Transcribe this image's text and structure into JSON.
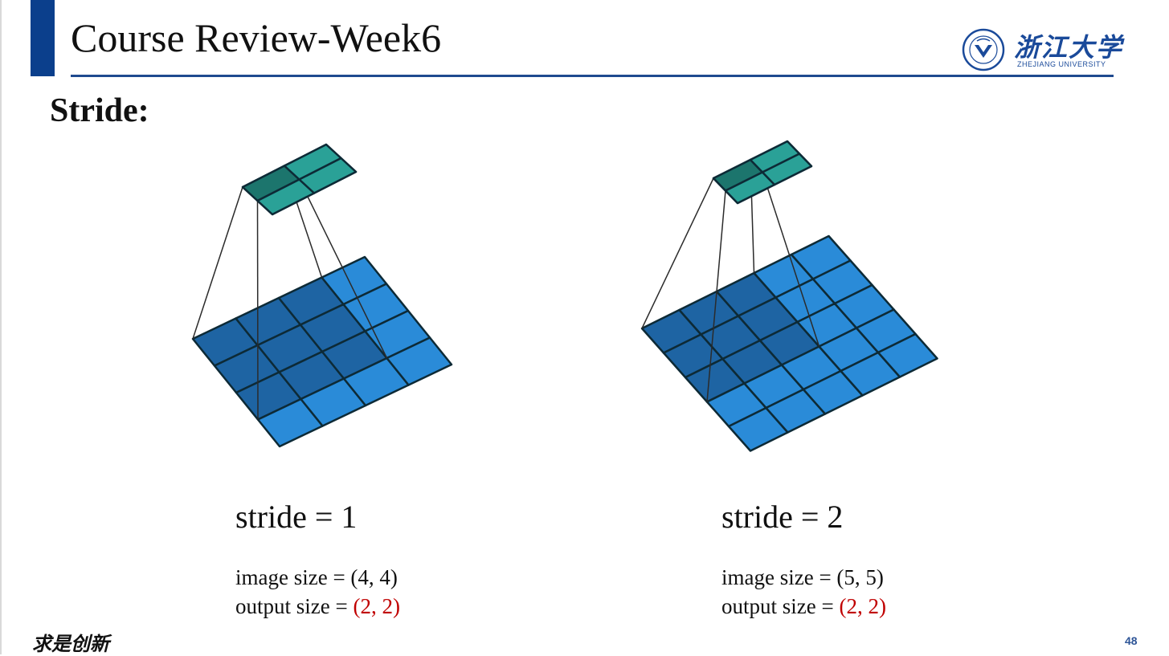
{
  "header": {
    "title": "Course Review-Week6",
    "logo_cn": "浙江大学",
    "logo_en": "ZHEJIANG UNIVERSITY"
  },
  "slide": {
    "subtitle": "Stride:",
    "left": {
      "stride_label": "stride = 1",
      "image_size_label": "image size = (4, 4)",
      "output_size_prefix": "output size = ",
      "output_size_value": "(2, 2)"
    },
    "right": {
      "stride_label": "stride = 2",
      "image_size_label": "image size = (5, 5)",
      "output_size_prefix": "output size = ",
      "output_size_value": "(2, 2)"
    }
  },
  "footer": {
    "motto": "求是创新",
    "page_number": "48"
  },
  "colors": {
    "accent": "#0b3f8c",
    "input_cell": "#2a8bd8",
    "input_highlight": "#1e64a3",
    "output_cell": "#2aa197",
    "output_highlight": "#1c756d",
    "highlight_text": "#c00000"
  }
}
